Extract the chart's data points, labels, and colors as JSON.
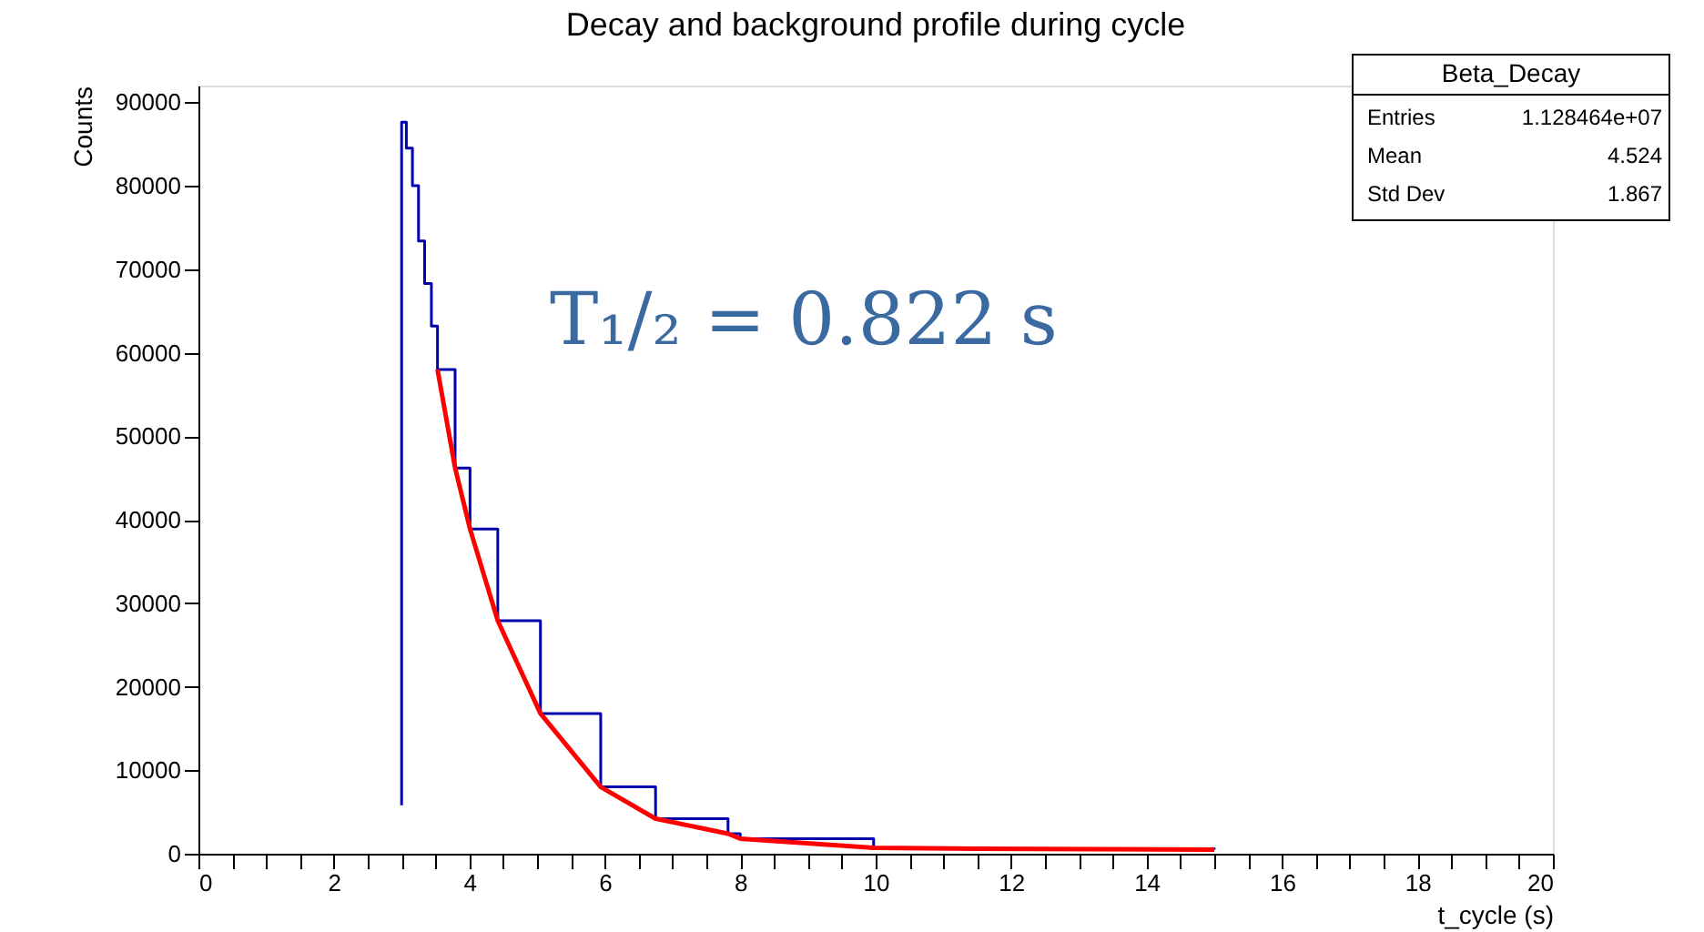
{
  "chart_data": {
    "type": "step",
    "title": "Decay and background profile during cycle",
    "xlabel": "t_cycle (s)",
    "ylabel": "Counts",
    "series": [
      {
        "color": "#0000aa",
        "x": [
          3.0,
          3.0,
          3.07,
          3.16,
          3.25,
          3.34,
          3.44,
          3.53,
          3.79,
          4.01,
          4.42,
          5.05,
          5.94,
          6.75,
          7.82,
          8.0,
          9.97,
          11.5,
          15.0
        ],
        "values": [
          5800,
          87600,
          84500,
          80000,
          73400,
          68300,
          63200,
          58000,
          46200,
          38900,
          27900,
          16800,
          8000,
          4200,
          2400,
          1800,
          700,
          600,
          500
        ]
      },
      {
        "type": "line",
        "color": "#ff0000",
        "x": [
          3.53,
          3.79,
          4.01,
          4.42,
          5.05,
          5.94,
          6.75,
          7.82,
          8.0,
          9.97,
          11.5,
          15.0
        ],
        "values": [
          58000,
          46200,
          38900,
          27900,
          16800,
          8000,
          4200,
          2400,
          1800,
          700,
          600,
          500
        ]
      }
    ],
    "xlim": [
      0,
      20
    ],
    "xticks": [
      0,
      {
        "value": 0.5,
        "label": null
      },
      {
        "value": 1,
        "label": null
      },
      {
        "value": 1.5,
        "label": null
      },
      2,
      {
        "value": 2.5,
        "label": null
      },
      {
        "value": 3,
        "label": null
      },
      {
        "value": 3.5,
        "label": null
      },
      4,
      {
        "value": 4.5,
        "label": null
      },
      {
        "value": 5,
        "label": null
      },
      {
        "value": 5.5,
        "label": null
      },
      6,
      {
        "value": 6.5,
        "label": null
      },
      {
        "value": 7,
        "label": null
      },
      {
        "value": 7.5,
        "label": null
      },
      8,
      {
        "value": 8.5,
        "label": null
      },
      {
        "value": 9,
        "label": null
      },
      {
        "value": 9.5,
        "label": null
      },
      10,
      {
        "value": 10.5,
        "label": null
      },
      {
        "value": 11,
        "label": null
      },
      {
        "value": 11.5,
        "label": null
      },
      12,
      {
        "value": 12.5,
        "label": null
      },
      {
        "value": 13,
        "label": null
      },
      {
        "value": 13.5,
        "label": null
      },
      14,
      {
        "value": 14.5,
        "label": null
      },
      {
        "value": 15,
        "label": null
      },
      {
        "value": 15.5,
        "label": null
      },
      16,
      {
        "value": 16.5,
        "label": null
      },
      {
        "value": 17,
        "label": null
      },
      {
        "value": 17.5,
        "label": null
      },
      18,
      {
        "value": 18.5,
        "label": null
      },
      {
        "value": 19,
        "label": null
      },
      {
        "value": 19.5,
        "label": null
      },
      20
    ],
    "ylim": [
      0,
      92000
    ],
    "yticks": [
      0,
      10000,
      20000,
      30000,
      40000,
      50000,
      60000,
      70000,
      80000,
      90000
    ],
    "grid": false,
    "annotations": [
      "Beta_Decay",
      "Entries",
      "1.128464e+07",
      "Mean",
      "4.524",
      "Std Dev",
      "1.867",
      "T₁/₂ = 0.822 s"
    ]
  }
}
